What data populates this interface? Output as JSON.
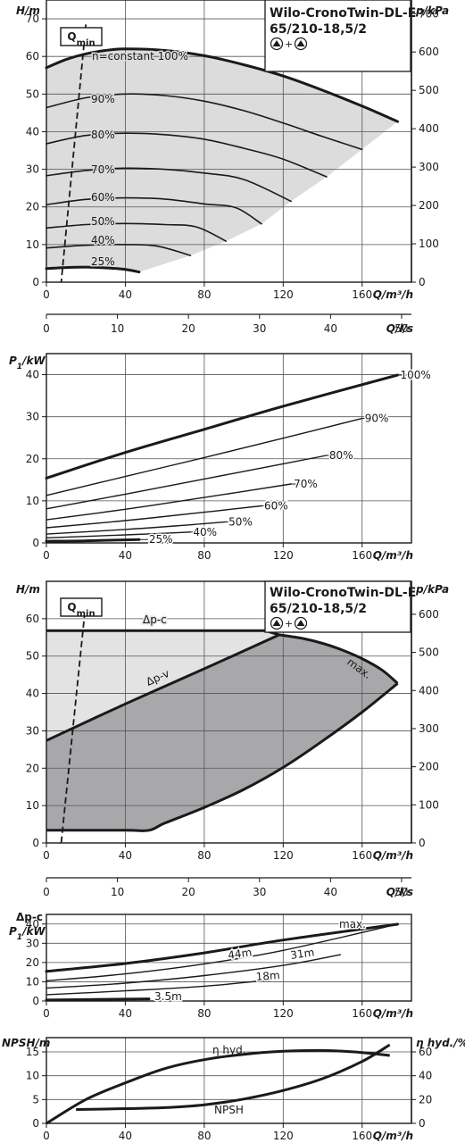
{
  "product": {
    "brand_line": "Wilo-CronoTwin-DL-E",
    "model_line": "65/210-18,5/2",
    "connector": "+"
  },
  "qmin_label": "Qmin",
  "chart_data": [
    {
      "id": "hq",
      "type": "line",
      "ylabel": "H/m",
      "y2label": "p/kPa",
      "xlabel": "Q/m³/h",
      "x2label": "Q/l/s",
      "xlim": [
        0,
        185
      ],
      "ylim": [
        0,
        75
      ],
      "y2lim": [
        0,
        735.5
      ],
      "x_ticks": [
        0,
        40,
        80,
        120,
        160
      ],
      "y_ticks": [
        0,
        10,
        20,
        30,
        40,
        50,
        60,
        70
      ],
      "y2_ticks": [
        0,
        100,
        200,
        300,
        400,
        500,
        600,
        700
      ],
      "x2_ticks": [
        0,
        10,
        20,
        30,
        40,
        50
      ],
      "grid": true,
      "series": [
        {
          "name": "n=constant 100%",
          "x": [
            0,
            10,
            20,
            30,
            40,
            60,
            80,
            100,
            120,
            140,
            160,
            178
          ],
          "y": [
            57,
            59.2,
            60.7,
            61.6,
            62,
            61.6,
            60.2,
            57.8,
            54.8,
            51,
            46.8,
            42.7
          ]
        },
        {
          "name": "90%",
          "x": [
            0,
            20,
            40,
            60,
            80,
            100,
            120,
            140,
            160
          ],
          "y": [
            46.4,
            49,
            50,
            49.6,
            48.1,
            45.6,
            42.3,
            38.7,
            35.3
          ]
        },
        {
          "name": "80%",
          "x": [
            0,
            20,
            40,
            60,
            80,
            100,
            120,
            142
          ],
          "y": [
            36.8,
            39,
            39.6,
            39.2,
            38,
            35.6,
            32.7,
            28
          ]
        },
        {
          "name": "70%",
          "x": [
            0,
            20,
            40,
            60,
            80,
            100,
            124
          ],
          "y": [
            28.3,
            29.7,
            30.3,
            30,
            29,
            27.3,
            21.5
          ]
        },
        {
          "name": "60%",
          "x": [
            0,
            20,
            40,
            60,
            80,
            96,
            109
          ],
          "y": [
            20.6,
            22,
            22.4,
            22.1,
            20.8,
            19.8,
            15.5
          ]
        },
        {
          "name": "50%",
          "x": [
            0,
            20,
            40,
            60,
            76,
            91
          ],
          "y": [
            14.4,
            15.3,
            15.6,
            15.3,
            14.7,
            10.9
          ]
        },
        {
          "name": "40%",
          "x": [
            0,
            20,
            40,
            56,
            73
          ],
          "y": [
            9.1,
            9.8,
            10,
            9.6,
            7.1
          ]
        },
        {
          "name": "25%",
          "x": [
            0,
            10,
            20,
            30,
            40,
            47
          ],
          "y": [
            3.6,
            3.9,
            4,
            3.8,
            3.4,
            2.7
          ]
        }
      ],
      "qmin_line": {
        "x": [
          20,
          7.5
        ],
        "y": [
          68.5,
          0
        ]
      }
    },
    {
      "id": "p1",
      "type": "line",
      "ylabel": "P1/kW",
      "xlabel": "Q/m³/h",
      "xlim": [
        0,
        185
      ],
      "ylim": [
        0,
        45
      ],
      "x_ticks": [
        0,
        40,
        80,
        120,
        160
      ],
      "y_ticks": [
        0,
        10,
        20,
        30,
        40
      ],
      "grid": true,
      "series": [
        {
          "name": "100%",
          "x": [
            0,
            40,
            80,
            120,
            178
          ],
          "y": [
            15.4,
            21.5,
            27,
            32.5,
            39.9
          ]
        },
        {
          "name": "90%",
          "x": [
            0,
            40,
            80,
            120,
            160
          ],
          "y": [
            11.3,
            15.8,
            20.3,
            24.9,
            29.6
          ]
        },
        {
          "name": "80%",
          "x": [
            0,
            40,
            80,
            120,
            142
          ],
          "y": [
            8.1,
            11.6,
            15.2,
            18.8,
            20.8
          ]
        },
        {
          "name": "70%",
          "x": [
            0,
            40,
            80,
            124
          ],
          "y": [
            5.5,
            8,
            10.8,
            14
          ]
        },
        {
          "name": "60%",
          "x": [
            0,
            40,
            80,
            109
          ],
          "y": [
            3.6,
            5.3,
            7.3,
            8.8
          ]
        },
        {
          "name": "50%",
          "x": [
            0,
            40,
            70,
            91
          ],
          "y": [
            2.1,
            3.2,
            4.2,
            5
          ]
        },
        {
          "name": "40%",
          "x": [
            0,
            40,
            60,
            73
          ],
          "y": [
            1.2,
            1.9,
            2.3,
            2.6
          ]
        },
        {
          "name": "25%",
          "x": [
            0,
            20,
            47
          ],
          "y": [
            0.4,
            0.5,
            0.8
          ]
        }
      ]
    },
    {
      "id": "dp",
      "type": "area",
      "ylabel": "H/m",
      "y2label": "p/kPa",
      "xlabel": "Q/m³/h",
      "x2label": "Q/l/s",
      "xlim": [
        0,
        185
      ],
      "ylim": [
        0,
        70
      ],
      "y2lim": [
        0,
        686.5
      ],
      "x_ticks": [
        0,
        40,
        80,
        120,
        160
      ],
      "y_ticks": [
        0,
        10,
        20,
        30,
        40,
        50,
        60
      ],
      "y2_ticks": [
        0,
        100,
        200,
        300,
        400,
        500,
        600
      ],
      "x2_ticks": [
        0,
        10,
        20,
        30,
        40,
        50
      ],
      "grid": true,
      "series": [
        {
          "name": "Δp-c",
          "x": [
            0,
            111,
            118
          ],
          "y": [
            56.8,
            56.8,
            55.7
          ]
        },
        {
          "name": "Δp-v",
          "x": [
            0,
            40,
            80,
            118
          ],
          "y": [
            27.4,
            37.2,
            46.6,
            55.7
          ]
        },
        {
          "name": "max.",
          "x": [
            118,
            130,
            140,
            150,
            160,
            170,
            178
          ],
          "y": [
            55.7,
            54.7,
            53.4,
            51.6,
            49.3,
            46.3,
            42.7
          ]
        },
        {
          "name": "",
          "x": [
            0,
            40,
            52,
            60,
            80,
            100,
            120,
            140,
            160,
            178
          ],
          "y": [
            3.4,
            3.4,
            3.4,
            5.3,
            9.5,
            14.3,
            20.2,
            27.3,
            35,
            42.7
          ]
        }
      ],
      "qmin_line": {
        "x": [
          20,
          7.5
        ],
        "y": [
          64.5,
          0
        ]
      }
    },
    {
      "id": "p1dp",
      "type": "line",
      "ylabel": "P1/kW",
      "y_title_top": "Δp-c",
      "xlabel": "Q/m³/h",
      "xlim": [
        0,
        185
      ],
      "ylim": [
        0,
        45
      ],
      "x_ticks": [
        0,
        40,
        80,
        120,
        160
      ],
      "y_ticks": [
        0,
        10,
        20,
        30,
        40
      ],
      "grid": true,
      "series": [
        {
          "name": "max.",
          "x": [
            0,
            40,
            80,
            120,
            178
          ],
          "y": [
            15.4,
            19.5,
            25,
            31.7,
            39.9
          ]
        },
        {
          "name": "44m",
          "x": [
            0,
            40,
            80,
            120,
            178
          ],
          "y": [
            10.5,
            14.1,
            19.3,
            26.3,
            39.9
          ]
        },
        {
          "name": "31m",
          "x": [
            0,
            40,
            80,
            120,
            149
          ],
          "y": [
            6.7,
            9.3,
            13.2,
            18.5,
            24.1
          ]
        },
        {
          "name": "18m",
          "x": [
            0,
            40,
            80,
            114
          ],
          "y": [
            3.3,
            5.3,
            7.7,
            11
          ]
        },
        {
          "name": "3.5m",
          "x": [
            0,
            52
          ],
          "y": [
            0.5,
            1.1
          ]
        }
      ]
    },
    {
      "id": "npsh",
      "type": "line",
      "ylabel": "NPSH/m",
      "y2label": "η hyd./%",
      "xlabel": "Q/m³/h",
      "xlim": [
        0,
        185
      ],
      "ylim": [
        0,
        18
      ],
      "y2lim": [
        0,
        72
      ],
      "x_ticks": [
        0,
        40,
        80,
        120,
        160
      ],
      "y_ticks": [
        0,
        5,
        10,
        15
      ],
      "y2_ticks": [
        0,
        20,
        40,
        60
      ],
      "grid": true,
      "series": [
        {
          "name": "η hyd.",
          "axis": "right",
          "x": [
            0,
            20,
            40,
            60,
            80,
            100,
            120,
            140,
            160,
            174
          ],
          "y": [
            0,
            20,
            34,
            46,
            53.5,
            58,
            60.5,
            61.2,
            59.5,
            57
          ]
        },
        {
          "name": "NPSH",
          "axis": "left",
          "x": [
            15,
            40,
            60,
            80,
            100,
            120,
            140,
            160,
            174
          ],
          "y": [
            2.9,
            3.1,
            3.3,
            3.9,
            5.1,
            6.9,
            9.4,
            13,
            16.5
          ]
        }
      ]
    }
  ]
}
